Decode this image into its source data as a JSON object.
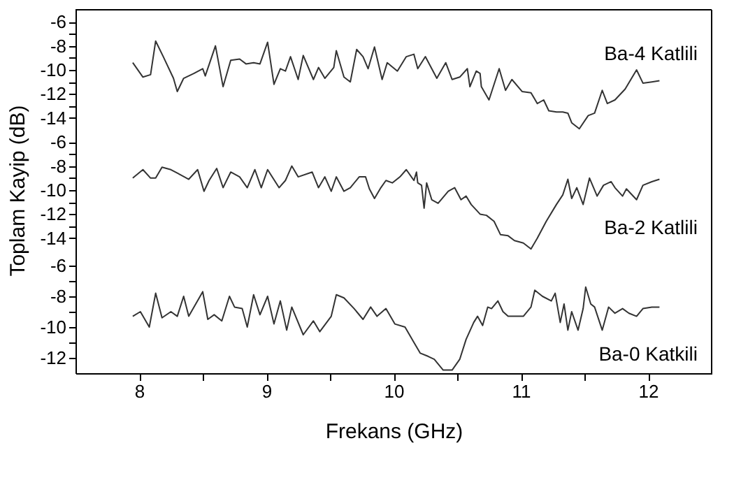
{
  "chart_data": [
    {
      "type": "line",
      "tick_labels": "y",
      "xlim": [
        7.5,
        12.5
      ],
      "ylim": [
        -15,
        -5
      ],
      "yticks": [
        -6,
        {
          "value": -7,
          "label": null
        },
        -8,
        {
          "value": -9,
          "label": null
        },
        -10,
        {
          "value": -11,
          "label": null
        },
        -12,
        {
          "value": -13,
          "label": null
        },
        -14
      ],
      "series": [
        {
          "name": "Ba-4 Katlili",
          "color": "#333333",
          "x": [
            7.95,
            8.03,
            8.09,
            8.13,
            8.19,
            8.27,
            8.3,
            8.35,
            8.43,
            8.5,
            8.52,
            8.6,
            8.66,
            8.72,
            8.79,
            8.84,
            8.9,
            8.95,
            9.01,
            9.06,
            9.11,
            9.15,
            9.19,
            9.25,
            9.29,
            9.37,
            9.41,
            9.46,
            9.53,
            9.55,
            9.61,
            9.66,
            9.71,
            9.76,
            9.8,
            9.85,
            9.91,
            9.95,
            10.03,
            10.1,
            10.16,
            10.19,
            10.25,
            10.3,
            10.34,
            10.41,
            10.46,
            10.52,
            10.58,
            10.6,
            10.65,
            10.68,
            10.69,
            10.75,
            10.83,
            10.88,
            10.93,
            11.01,
            11.08,
            11.13,
            11.18,
            11.22,
            11.28,
            11.33,
            11.37,
            11.4,
            11.46,
            11.53,
            11.58,
            11.64,
            11.68,
            11.74,
            11.82,
            11.91,
            11.96,
            12.03,
            12.09
          ],
          "values": [
            -9.4,
            -10.6,
            -10.4,
            -7.6,
            -8.9,
            -10.7,
            -11.8,
            -10.7,
            -10.3,
            -9.9,
            -10.5,
            -8.0,
            -11.4,
            -9.2,
            -9.1,
            -9.5,
            -9.4,
            -9.5,
            -7.7,
            -11.2,
            -9.9,
            -10.1,
            -8.9,
            -10.8,
            -8.8,
            -10.8,
            -9.8,
            -10.7,
            -9.8,
            -8.4,
            -10.6,
            -11.0,
            -8.3,
            -8.9,
            -9.9,
            -8.1,
            -10.8,
            -9.4,
            -10.1,
            -8.9,
            -8.7,
            -9.9,
            -8.9,
            -9.9,
            -10.7,
            -9.4,
            -10.8,
            -10.6,
            -9.9,
            -11.4,
            -10.1,
            -10.3,
            -11.4,
            -12.5,
            -9.9,
            -11.7,
            -10.8,
            -11.8,
            -11.9,
            -12.8,
            -12.5,
            -13.4,
            -13.5,
            -13.5,
            -13.6,
            -14.4,
            -14.9,
            -13.8,
            -13.6,
            -11.7,
            -12.8,
            -12.5,
            -11.6,
            -10.0,
            -11.1,
            -11.0,
            -10.9
          ]
        }
      ]
    },
    {
      "type": "line",
      "tick_labels": "y",
      "xlim": [
        7.5,
        12.5
      ],
      "ylim": [
        -15,
        -5
      ],
      "ylabel": "Toplam Kayip (dB)",
      "yticks": [
        -6,
        {
          "value": -7,
          "label": null
        },
        -8,
        {
          "value": -9,
          "label": null
        },
        -10,
        {
          "value": -11,
          "label": null
        },
        -12,
        {
          "value": -13,
          "label": null
        },
        -14
      ],
      "series": [
        {
          "name": "Ba-2 Katlili",
          "color": "#333333",
          "x": [
            7.95,
            8.03,
            8.09,
            8.13,
            8.18,
            8.25,
            8.32,
            8.39,
            8.46,
            8.51,
            8.55,
            8.61,
            8.66,
            8.72,
            8.79,
            8.85,
            8.91,
            8.96,
            9.01,
            9.1,
            9.15,
            9.2,
            9.25,
            9.36,
            9.41,
            9.46,
            9.51,
            9.55,
            9.61,
            9.66,
            9.73,
            9.78,
            9.81,
            9.85,
            9.9,
            9.94,
            9.99,
            10.05,
            10.1,
            10.16,
            10.18,
            10.19,
            10.22,
            10.24,
            10.26,
            10.3,
            10.35,
            10.43,
            10.48,
            10.53,
            10.57,
            10.61,
            10.68,
            10.73,
            10.79,
            10.84,
            10.9,
            10.95,
            11.02,
            11.08,
            11.13,
            11.2,
            11.28,
            11.33,
            11.37,
            11.4,
            11.44,
            11.49,
            11.54,
            11.6,
            11.65,
            11.71,
            11.74,
            11.8,
            11.83,
            11.91,
            11.96,
            12.03,
            12.09
          ],
          "values": [
            -9.0,
            -8.3,
            -9.0,
            -9.0,
            -8.1,
            -8.3,
            -8.7,
            -9.1,
            -8.3,
            -10.1,
            -9.2,
            -8.2,
            -9.8,
            -8.5,
            -8.9,
            -9.8,
            -8.3,
            -9.8,
            -8.3,
            -9.8,
            -9.2,
            -8.0,
            -8.9,
            -8.5,
            -9.8,
            -8.9,
            -10.1,
            -8.9,
            -10.1,
            -9.8,
            -8.9,
            -8.9,
            -9.9,
            -10.7,
            -9.8,
            -9.2,
            -9.4,
            -8.9,
            -8.3,
            -9.2,
            -8.5,
            -9.4,
            -9.6,
            -11.5,
            -9.4,
            -10.8,
            -11.1,
            -10.1,
            -9.8,
            -10.8,
            -10.5,
            -11.2,
            -12.0,
            -12.1,
            -12.6,
            -13.7,
            -13.8,
            -14.2,
            -14.4,
            -14.9,
            -14.0,
            -12.6,
            -11.2,
            -10.4,
            -9.1,
            -10.7,
            -9.8,
            -11.2,
            -9.0,
            -10.5,
            -9.6,
            -9.3,
            -9.8,
            -10.5,
            -9.9,
            -10.8,
            -9.6,
            -9.3,
            -9.1
          ]
        }
      ]
    },
    {
      "type": "line",
      "xlim": [
        7.5,
        12.5
      ],
      "ylim": [
        -13,
        -5
      ],
      "xlabel": "Frekans (GHz)",
      "xticks": [
        8,
        {
          "value": 8.5,
          "label": null
        },
        9,
        {
          "value": 9.5,
          "label": null
        },
        10,
        {
          "value": 10.5,
          "label": null
        },
        11,
        {
          "value": 11.5,
          "label": null
        },
        12
      ],
      "yticks": [
        -6,
        {
          "value": -7,
          "label": null
        },
        -8,
        {
          "value": -9,
          "label": null
        },
        -10,
        {
          "value": -11,
          "label": null
        },
        -12
      ],
      "series": [
        {
          "name": "Ba-0 Katkili",
          "color": "#333333",
          "x": [
            7.95,
            8.01,
            8.08,
            8.13,
            8.18,
            8.25,
            8.3,
            8.35,
            8.39,
            8.5,
            8.54,
            8.59,
            8.65,
            8.71,
            8.75,
            8.81,
            8.85,
            8.9,
            8.95,
            9.01,
            9.06,
            9.11,
            9.16,
            9.2,
            9.29,
            9.37,
            9.42,
            9.51,
            9.55,
            9.61,
            9.69,
            9.76,
            9.82,
            9.87,
            9.94,
            10.01,
            10.09,
            10.16,
            10.21,
            10.27,
            10.32,
            10.39,
            10.46,
            10.52,
            10.57,
            10.63,
            10.66,
            10.7,
            10.74,
            10.77,
            10.82,
            10.86,
            10.9,
            10.95,
            11.02,
            11.08,
            11.11,
            11.17,
            11.24,
            11.27,
            11.31,
            11.34,
            11.37,
            11.4,
            11.45,
            11.49,
            11.51,
            11.55,
            11.58,
            11.64,
            11.69,
            11.74,
            11.8,
            11.85,
            11.91,
            11.96,
            12.03,
            12.09
          ],
          "values": [
            -9.3,
            -9.0,
            -10.0,
            -7.8,
            -9.4,
            -9.0,
            -9.3,
            -8.0,
            -9.3,
            -7.7,
            -9.5,
            -9.2,
            -9.6,
            -8.0,
            -8.7,
            -8.8,
            -10.0,
            -7.9,
            -9.2,
            -8.0,
            -9.8,
            -8.3,
            -10.2,
            -8.7,
            -10.5,
            -9.6,
            -10.3,
            -9.3,
            -7.9,
            -8.1,
            -8.8,
            -9.5,
            -8.7,
            -9.3,
            -8.8,
            -9.8,
            -10.0,
            -11.0,
            -11.7,
            -11.9,
            -12.1,
            -12.8,
            -12.8,
            -12.1,
            -10.8,
            -9.7,
            -9.3,
            -9.9,
            -8.7,
            -8.8,
            -8.3,
            -9.0,
            -9.3,
            -9.3,
            -9.3,
            -8.7,
            -7.6,
            -8.0,
            -8.3,
            -7.8,
            -9.7,
            -8.5,
            -10.2,
            -9.0,
            -10.2,
            -8.8,
            -7.4,
            -8.5,
            -8.7,
            -10.2,
            -8.7,
            -9.1,
            -8.8,
            -9.1,
            -9.3,
            -8.8,
            -8.7,
            -8.7
          ]
        }
      ]
    }
  ]
}
